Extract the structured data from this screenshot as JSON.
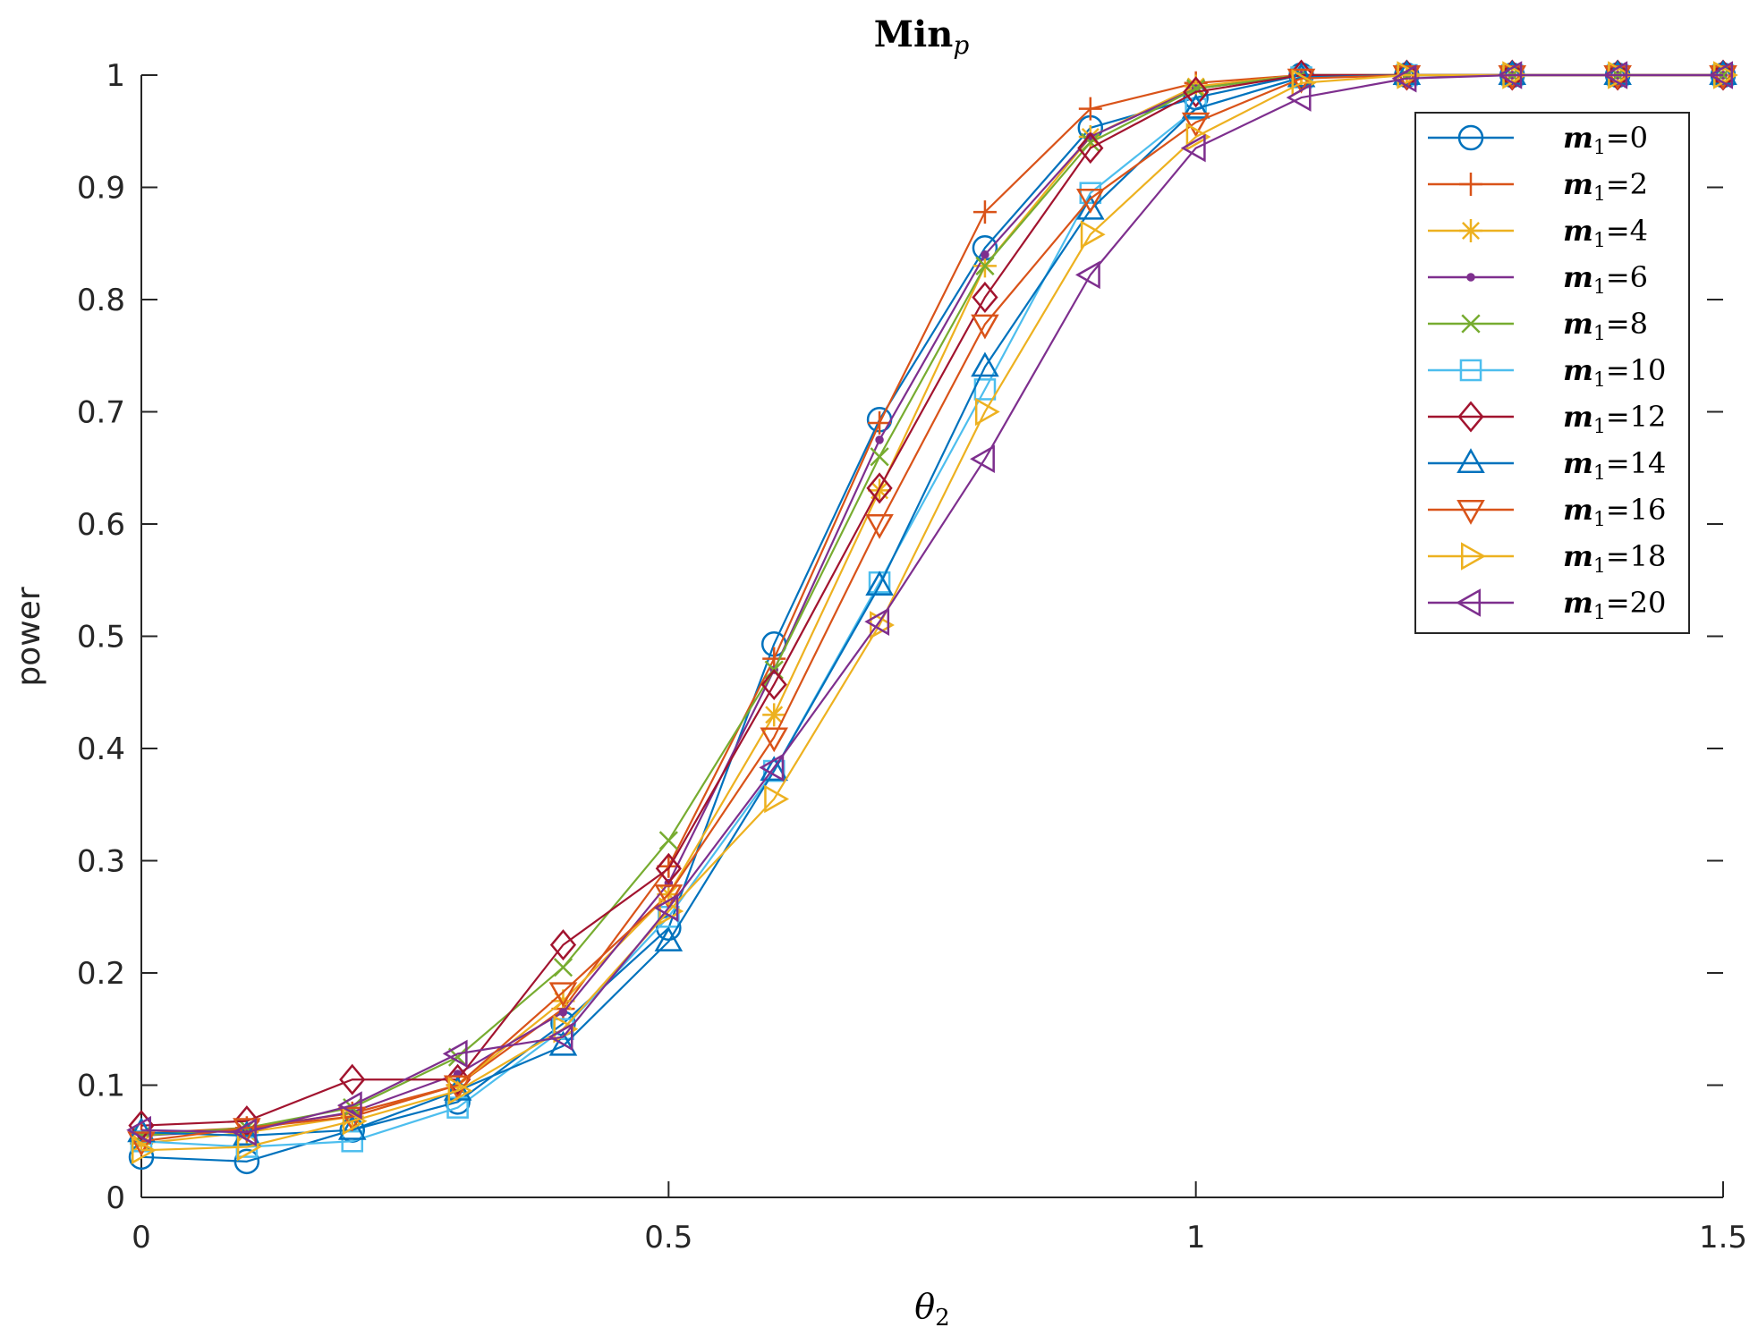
{
  "chart_data": {
    "type": "line",
    "title_main": "Min",
    "title_sub": "p",
    "xlabel_main": "θ",
    "xlabel_sub": "2",
    "ylabel": "power",
    "xlim": [
      0,
      1.5
    ],
    "ylim": [
      0,
      1
    ],
    "x_ticks": [
      0,
      0.5,
      1,
      1.5
    ],
    "x_tick_labels": [
      "0",
      "0.5",
      "1",
      "1.5"
    ],
    "y_ticks": [
      0,
      0.1,
      0.2,
      0.3,
      0.4,
      0.5,
      0.6,
      0.7,
      0.8,
      0.9,
      1
    ],
    "y_tick_labels": [
      "0",
      "0.1",
      "0.2",
      "0.3",
      "0.4",
      "0.5",
      "0.6",
      "0.7",
      "0.8",
      "0.9",
      "1"
    ],
    "legend_position": "top-right",
    "x": [
      0,
      0.1,
      0.2,
      0.3,
      0.4,
      0.5,
      0.6,
      0.7,
      0.8,
      0.9,
      1.0,
      1.1,
      1.2,
      1.3,
      1.4,
      1.5
    ],
    "series": [
      {
        "name": "m1=0",
        "label_var": "m",
        "label_sub": "1",
        "label_val": "=0",
        "color": "#0072BD",
        "marker": "circle",
        "values": [
          0.036,
          0.032,
          0.06,
          0.085,
          0.155,
          0.24,
          0.493,
          0.693,
          0.846,
          0.953,
          0.98,
          1.0,
          1.0,
          1.0,
          1.0,
          1.0
        ]
      },
      {
        "name": "m1=2",
        "label_var": "m",
        "label_sub": "1",
        "label_val": "=2",
        "color": "#D95319",
        "marker": "plus",
        "values": [
          0.057,
          0.062,
          0.075,
          0.1,
          0.168,
          0.295,
          0.48,
          0.69,
          0.878,
          0.97,
          0.993,
          1.0,
          1.0,
          1.0,
          1.0,
          1.0
        ]
      },
      {
        "name": "m1=4",
        "label_var": "m",
        "label_sub": "1",
        "label_val": "=4",
        "color": "#EDB120",
        "marker": "asterisk",
        "values": [
          0.048,
          0.058,
          0.072,
          0.1,
          0.175,
          0.27,
          0.43,
          0.63,
          0.83,
          0.945,
          0.99,
          1.0,
          1.0,
          1.0,
          1.0,
          1.0
        ]
      },
      {
        "name": "m1=6",
        "label_var": "m",
        "label_sub": "1",
        "label_val": "=6",
        "color": "#7E2F8E",
        "marker": "point",
        "values": [
          0.055,
          0.06,
          0.076,
          0.11,
          0.165,
          0.28,
          0.47,
          0.675,
          0.84,
          0.945,
          0.988,
          1.0,
          1.0,
          1.0,
          1.0,
          1.0
        ]
      },
      {
        "name": "m1=8",
        "label_var": "m",
        "label_sub": "1",
        "label_val": "=8",
        "color": "#77AC30",
        "marker": "x",
        "values": [
          0.055,
          0.062,
          0.08,
          0.125,
          0.205,
          0.318,
          0.47,
          0.66,
          0.83,
          0.94,
          0.988,
          1.0,
          1.0,
          1.0,
          1.0,
          1.0
        ]
      },
      {
        "name": "m1=10",
        "label_var": "m",
        "label_sub": "1",
        "label_val": "=10",
        "color": "#4DBEEE",
        "marker": "square",
        "values": [
          0.05,
          0.045,
          0.05,
          0.08,
          0.15,
          0.25,
          0.38,
          0.548,
          0.72,
          0.895,
          0.97,
          0.998,
          1.0,
          1.0,
          1.0,
          1.0
        ]
      },
      {
        "name": "m1=12",
        "label_var": "m",
        "label_sub": "1",
        "label_val": "=12",
        "color": "#A2142F",
        "marker": "diamond",
        "values": [
          0.064,
          0.068,
          0.105,
          0.105,
          0.225,
          0.293,
          0.457,
          0.632,
          0.802,
          0.935,
          0.985,
          1.0,
          1.0,
          1.0,
          1.0,
          1.0
        ]
      },
      {
        "name": "m1=14",
        "label_var": "m",
        "label_sub": "1",
        "label_val": "=14",
        "color": "#0072BD",
        "marker": "triangle-up",
        "values": [
          0.058,
          0.055,
          0.06,
          0.095,
          0.135,
          0.228,
          0.38,
          0.545,
          0.74,
          0.88,
          0.97,
          0.998,
          1.0,
          1.0,
          1.0,
          1.0
        ]
      },
      {
        "name": "m1=16",
        "label_var": "m",
        "label_sub": "1",
        "label_val": "=16",
        "color": "#D95319",
        "marker": "triangle-down",
        "values": [
          0.05,
          0.062,
          0.072,
          0.1,
          0.183,
          0.27,
          0.41,
          0.6,
          0.778,
          0.89,
          0.958,
          0.997,
          1.0,
          1.0,
          1.0,
          1.0
        ]
      },
      {
        "name": "m1=18",
        "label_var": "m",
        "label_sub": "1",
        "label_val": "=18",
        "color": "#EDB120",
        "marker": "triangle-right",
        "values": [
          0.042,
          0.045,
          0.068,
          0.095,
          0.15,
          0.255,
          0.355,
          0.51,
          0.7,
          0.858,
          0.945,
          0.993,
          1.0,
          1.0,
          1.0,
          1.0
        ]
      },
      {
        "name": "m1=20",
        "label_var": "m",
        "label_sub": "1",
        "label_val": "=20",
        "color": "#7E2F8E",
        "marker": "triangle-left",
        "values": [
          0.06,
          0.058,
          0.082,
          0.128,
          0.143,
          0.258,
          0.383,
          0.513,
          0.658,
          0.822,
          0.935,
          0.98,
          0.997,
          1.0,
          1.0,
          1.0
        ]
      }
    ]
  }
}
